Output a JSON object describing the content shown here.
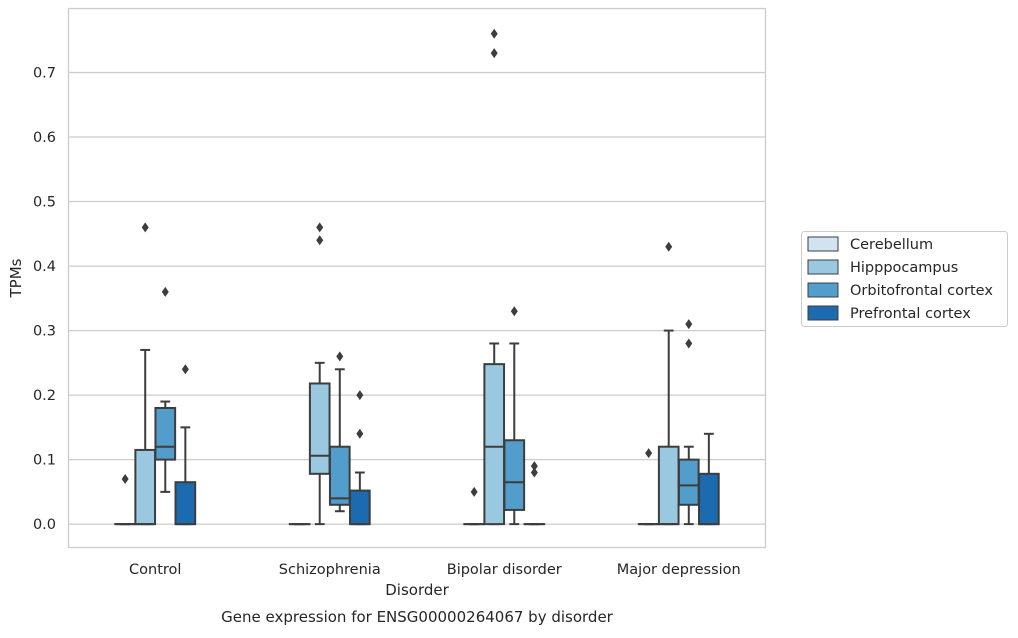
{
  "chart_data": {
    "type": "boxplot",
    "title": "",
    "caption": "Gene expression for ENSG00000264067 by disorder",
    "xlabel": "Disorder",
    "ylabel": "TPMs",
    "ylim": [
      -0.037,
      0.8
    ],
    "yticks": [
      0.0,
      0.1,
      0.2,
      0.3,
      0.4,
      0.5,
      0.6,
      0.7
    ],
    "ytick_labels": [
      "0.0",
      "0.1",
      "0.2",
      "0.3",
      "0.4",
      "0.5",
      "0.6",
      "0.7"
    ],
    "grid": "horizontal",
    "legend_placement": "right",
    "categories": [
      "Control",
      "Schizophrenia",
      "Bipolar disorder",
      "Major depression"
    ],
    "series": [
      {
        "name": "Cerebellum",
        "color": "#d1e3f3",
        "boxes": [
          {
            "whisker_low": 0,
            "q1": 0,
            "median": 0,
            "q3": 0,
            "whisker_high": 0,
            "outliers": [
              0.07
            ]
          },
          {
            "whisker_low": 0,
            "q1": 0,
            "median": 0,
            "q3": 0,
            "whisker_high": 0,
            "outliers": []
          },
          {
            "whisker_low": 0,
            "q1": 0,
            "median": 0,
            "q3": 0,
            "whisker_high": 0,
            "outliers": [
              0.05
            ]
          },
          {
            "whisker_low": 0,
            "q1": 0,
            "median": 0,
            "q3": 0,
            "whisker_high": 0,
            "outliers": [
              0.11
            ]
          }
        ]
      },
      {
        "name": "Hipppocampus",
        "color": "#9ac8e0",
        "boxes": [
          {
            "whisker_low": 0,
            "q1": 0,
            "median": 0.0,
            "q3": 0.115,
            "whisker_high": 0.27,
            "outliers": [
              0.46
            ]
          },
          {
            "whisker_low": 0.0,
            "q1": 0.078,
            "median": 0.106,
            "q3": 0.218,
            "whisker_high": 0.25,
            "outliers": [
              0.44,
              0.46
            ]
          },
          {
            "whisker_low": 0,
            "q1": 0,
            "median": 0.12,
            "q3": 0.248,
            "whisker_high": 0.28,
            "outliers": [
              0.73,
              0.76
            ]
          },
          {
            "whisker_low": 0,
            "q1": 0,
            "median": 0.0,
            "q3": 0.12,
            "whisker_high": 0.3,
            "outliers": [
              0.43
            ]
          }
        ]
      },
      {
        "name": "Orbitofrontal cortex",
        "color": "#529dcc",
        "boxes": [
          {
            "whisker_low": 0.05,
            "q1": 0.1,
            "median": 0.12,
            "q3": 0.18,
            "whisker_high": 0.19,
            "outliers": [
              0.36
            ]
          },
          {
            "whisker_low": 0.02,
            "q1": 0.03,
            "median": 0.04,
            "q3": 0.12,
            "whisker_high": 0.24,
            "outliers": [
              0.26
            ]
          },
          {
            "whisker_low": 0,
            "q1": 0.022,
            "median": 0.065,
            "q3": 0.13,
            "whisker_high": 0.28,
            "outliers": [
              0.33
            ]
          },
          {
            "whisker_low": 0,
            "q1": 0.03,
            "median": 0.06,
            "q3": 0.1,
            "whisker_high": 0.12,
            "outliers": [
              0.28,
              0.31
            ]
          }
        ]
      },
      {
        "name": "Prefrontal cortex",
        "color": "#1c6aaf",
        "boxes": [
          {
            "whisker_low": 0,
            "q1": 0,
            "median": 0.0,
            "q3": 0.065,
            "whisker_high": 0.15,
            "outliers": [
              0.24
            ]
          },
          {
            "whisker_low": 0,
            "q1": 0,
            "median": 0.0,
            "q3": 0.052,
            "whisker_high": 0.08,
            "outliers": [
              0.14,
              0.2
            ]
          },
          {
            "whisker_low": 0,
            "q1": 0,
            "median": 0,
            "q3": 0,
            "whisker_high": 0,
            "outliers": [
              0.08,
              0.09
            ]
          },
          {
            "whisker_low": 0,
            "q1": 0,
            "median": 0.0,
            "q3": 0.078,
            "whisker_high": 0.14,
            "outliers": []
          }
        ]
      }
    ]
  }
}
